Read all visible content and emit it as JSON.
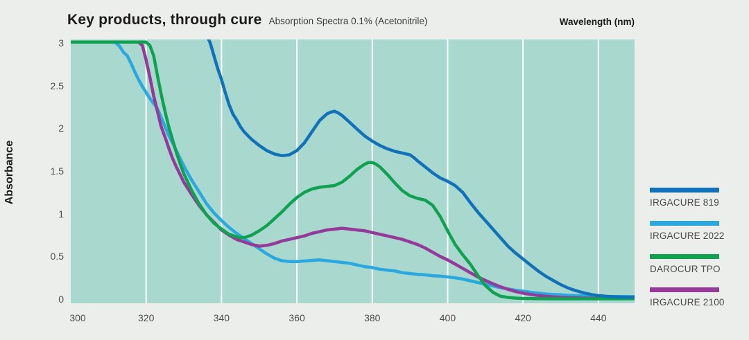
{
  "header": {
    "title": "Key products, through cure",
    "subtitle": "Absorption Spectra 0.1% (Acetonitrile)"
  },
  "colors": {
    "page_background": "#eceeeb",
    "plot_background": "#a9d8cf",
    "gridline": "#ffffff",
    "title_text": "#1a1a1a",
    "tick_text": "#4d4d4d",
    "legend_text": "#4a4a4a"
  },
  "chart_data": {
    "type": "line",
    "title": "Key products, through cure",
    "subtitle": "Absorption Spectra 0.1% (Acetonitrile)",
    "xlabel": "Wavelength (nm)",
    "ylabel": "Absorbance",
    "xlim": [
      300,
      449.6
    ],
    "ylim": [
      0,
      3
    ],
    "x_ticks": [
      300,
      320,
      340,
      360,
      380,
      400,
      420,
      440
    ],
    "y_ticks": [
      0,
      0.5,
      1,
      1.5,
      2,
      2.5,
      3
    ],
    "grid": "vertical-only",
    "legend_position": "right",
    "line_width": 4.5,
    "draw_order": [
      "IRGACURE 2022",
      "IRGACURE 2100",
      "DAROCUR TPO",
      "IRGACURE 819"
    ],
    "series": [
      {
        "name": "IRGACURE 819",
        "color": "#1272b9",
        "points": [
          [
            334,
            3.3
          ],
          [
            336,
            3.1
          ],
          [
            337,
            3.0
          ],
          [
            338,
            2.85
          ],
          [
            339,
            2.7
          ],
          [
            340,
            2.57
          ],
          [
            341,
            2.42
          ],
          [
            342,
            2.28
          ],
          [
            343,
            2.17
          ],
          [
            344,
            2.1
          ],
          [
            345,
            2.02
          ],
          [
            346,
            1.96
          ],
          [
            348,
            1.87
          ],
          [
            350,
            1.8
          ],
          [
            352,
            1.74
          ],
          [
            354,
            1.7
          ],
          [
            356,
            1.68
          ],
          [
            358,
            1.69
          ],
          [
            360,
            1.74
          ],
          [
            362,
            1.83
          ],
          [
            364,
            1.96
          ],
          [
            366,
            2.09
          ],
          [
            368,
            2.17
          ],
          [
            369,
            2.19
          ],
          [
            370,
            2.2
          ],
          [
            371,
            2.18
          ],
          [
            372,
            2.15
          ],
          [
            374,
            2.07
          ],
          [
            376,
            1.99
          ],
          [
            378,
            1.91
          ],
          [
            380,
            1.85
          ],
          [
            382,
            1.8
          ],
          [
            384,
            1.76
          ],
          [
            386,
            1.73
          ],
          [
            388,
            1.71
          ],
          [
            390,
            1.69
          ],
          [
            391,
            1.66
          ],
          [
            392,
            1.62
          ],
          [
            394,
            1.55
          ],
          [
            396,
            1.48
          ],
          [
            398,
            1.42
          ],
          [
            400,
            1.38
          ],
          [
            402,
            1.33
          ],
          [
            404,
            1.25
          ],
          [
            406,
            1.13
          ],
          [
            408,
            1.02
          ],
          [
            410,
            0.92
          ],
          [
            412,
            0.82
          ],
          [
            414,
            0.72
          ],
          [
            416,
            0.62
          ],
          [
            418,
            0.54
          ],
          [
            420,
            0.47
          ],
          [
            422,
            0.4
          ],
          [
            424,
            0.33
          ],
          [
            426,
            0.27
          ],
          [
            428,
            0.22
          ],
          [
            430,
            0.17
          ],
          [
            432,
            0.13
          ],
          [
            434,
            0.1
          ],
          [
            436,
            0.075
          ],
          [
            438,
            0.055
          ],
          [
            440,
            0.042
          ],
          [
            442,
            0.033
          ],
          [
            444,
            0.028
          ],
          [
            446,
            0.025
          ],
          [
            448,
            0.023
          ],
          [
            450,
            0.022
          ]
        ]
      },
      {
        "name": "IRGACURE 2022",
        "color": "#2aa9e0",
        "points": [
          [
            300,
            3.01
          ],
          [
            311,
            3.01
          ],
          [
            312,
            3.0
          ],
          [
            313,
            2.96
          ],
          [
            314,
            2.89
          ],
          [
            315,
            2.85
          ],
          [
            316,
            2.76
          ],
          [
            317,
            2.66
          ],
          [
            318,
            2.57
          ],
          [
            319,
            2.49
          ],
          [
            320,
            2.42
          ],
          [
            321,
            2.35
          ],
          [
            322,
            2.29
          ],
          [
            323,
            2.23
          ],
          [
            324,
            2.13
          ],
          [
            325,
            2.02
          ],
          [
            326,
            1.92
          ],
          [
            327,
            1.83
          ],
          [
            328,
            1.74
          ],
          [
            329,
            1.65
          ],
          [
            330,
            1.56
          ],
          [
            332,
            1.4
          ],
          [
            334,
            1.26
          ],
          [
            336,
            1.12
          ],
          [
            338,
            1.01
          ],
          [
            340,
            0.92
          ],
          [
            342,
            0.84
          ],
          [
            344,
            0.77
          ],
          [
            346,
            0.71
          ],
          [
            348,
            0.65
          ],
          [
            350,
            0.59
          ],
          [
            352,
            0.53
          ],
          [
            354,
            0.48
          ],
          [
            356,
            0.45
          ],
          [
            358,
            0.44
          ],
          [
            360,
            0.44
          ],
          [
            363,
            0.45
          ],
          [
            366,
            0.46
          ],
          [
            368,
            0.45
          ],
          [
            370,
            0.44
          ],
          [
            372,
            0.43
          ],
          [
            374,
            0.42
          ],
          [
            376,
            0.4
          ],
          [
            378,
            0.38
          ],
          [
            380,
            0.37
          ],
          [
            382,
            0.35
          ],
          [
            384,
            0.34
          ],
          [
            386,
            0.33
          ],
          [
            388,
            0.31
          ],
          [
            390,
            0.3
          ],
          [
            392,
            0.29
          ],
          [
            394,
            0.285
          ],
          [
            396,
            0.275
          ],
          [
            398,
            0.27
          ],
          [
            400,
            0.26
          ],
          [
            402,
            0.25
          ],
          [
            404,
            0.235
          ],
          [
            406,
            0.215
          ],
          [
            408,
            0.195
          ],
          [
            410,
            0.175
          ],
          [
            412,
            0.155
          ],
          [
            414,
            0.135
          ],
          [
            416,
            0.12
          ],
          [
            418,
            0.105
          ],
          [
            420,
            0.095
          ],
          [
            422,
            0.08
          ],
          [
            424,
            0.07
          ],
          [
            426,
            0.06
          ],
          [
            428,
            0.055
          ],
          [
            430,
            0.05
          ],
          [
            432,
            0.045
          ],
          [
            434,
            0.04
          ],
          [
            436,
            0.037
          ],
          [
            438,
            0.034
          ],
          [
            440,
            0.032
          ],
          [
            444,
            0.03
          ],
          [
            450,
            0.03
          ]
        ]
      },
      {
        "name": "DAROCUR TPO",
        "color": "#10a250",
        "points": [
          [
            300,
            3.01
          ],
          [
            320,
            3.01
          ],
          [
            321,
            2.97
          ],
          [
            322,
            2.85
          ],
          [
            323,
            2.62
          ],
          [
            324,
            2.4
          ],
          [
            325,
            2.2
          ],
          [
            326,
            2.02
          ],
          [
            327,
            1.87
          ],
          [
            328,
            1.72
          ],
          [
            329,
            1.59
          ],
          [
            330,
            1.47
          ],
          [
            332,
            1.28
          ],
          [
            334,
            1.12
          ],
          [
            336,
            0.99
          ],
          [
            338,
            0.89
          ],
          [
            340,
            0.82
          ],
          [
            342,
            0.76
          ],
          [
            344,
            0.73
          ],
          [
            345,
            0.72
          ],
          [
            346,
            0.72
          ],
          [
            348,
            0.75
          ],
          [
            350,
            0.8
          ],
          [
            352,
            0.86
          ],
          [
            354,
            0.94
          ],
          [
            356,
            1.02
          ],
          [
            358,
            1.11
          ],
          [
            360,
            1.19
          ],
          [
            362,
            1.25
          ],
          [
            364,
            1.29
          ],
          [
            366,
            1.31
          ],
          [
            368,
            1.32
          ],
          [
            370,
            1.33
          ],
          [
            372,
            1.37
          ],
          [
            374,
            1.44
          ],
          [
            376,
            1.52
          ],
          [
            378,
            1.58
          ],
          [
            379,
            1.6
          ],
          [
            380,
            1.6
          ],
          [
            381,
            1.58
          ],
          [
            382,
            1.55
          ],
          [
            384,
            1.46
          ],
          [
            386,
            1.36
          ],
          [
            388,
            1.27
          ],
          [
            390,
            1.21
          ],
          [
            392,
            1.18
          ],
          [
            394,
            1.16
          ],
          [
            396,
            1.1
          ],
          [
            398,
            0.97
          ],
          [
            400,
            0.8
          ],
          [
            402,
            0.64
          ],
          [
            404,
            0.52
          ],
          [
            406,
            0.41
          ],
          [
            408,
            0.28
          ],
          [
            410,
            0.16
          ],
          [
            412,
            0.08
          ],
          [
            414,
            0.035
          ],
          [
            416,
            0.02
          ],
          [
            418,
            0.012
          ],
          [
            420,
            0.008
          ],
          [
            425,
            0.005
          ],
          [
            430,
            0.004
          ],
          [
            440,
            0.004
          ],
          [
            450,
            0.004
          ]
        ]
      },
      {
        "name": "IRGACURE 2100",
        "color": "#953a9b",
        "points": [
          [
            300,
            3.01
          ],
          [
            318,
            3.01
          ],
          [
            319,
            2.97
          ],
          [
            320,
            2.8
          ],
          [
            321,
            2.6
          ],
          [
            322,
            2.38
          ],
          [
            323,
            2.2
          ],
          [
            324,
            2.02
          ],
          [
            325,
            1.9
          ],
          [
            326,
            1.77
          ],
          [
            327,
            1.65
          ],
          [
            328,
            1.55
          ],
          [
            330,
            1.37
          ],
          [
            332,
            1.23
          ],
          [
            334,
            1.1
          ],
          [
            336,
            0.99
          ],
          [
            338,
            0.9
          ],
          [
            340,
            0.81
          ],
          [
            342,
            0.75
          ],
          [
            344,
            0.7
          ],
          [
            346,
            0.67
          ],
          [
            348,
            0.64
          ],
          [
            350,
            0.62
          ],
          [
            352,
            0.63
          ],
          [
            354,
            0.65
          ],
          [
            356,
            0.68
          ],
          [
            358,
            0.7
          ],
          [
            360,
            0.72
          ],
          [
            362,
            0.74
          ],
          [
            364,
            0.77
          ],
          [
            366,
            0.79
          ],
          [
            368,
            0.81
          ],
          [
            370,
            0.82
          ],
          [
            372,
            0.83
          ],
          [
            374,
            0.82
          ],
          [
            376,
            0.81
          ],
          [
            378,
            0.8
          ],
          [
            380,
            0.78
          ],
          [
            382,
            0.76
          ],
          [
            384,
            0.74
          ],
          [
            386,
            0.72
          ],
          [
            388,
            0.7
          ],
          [
            390,
            0.67
          ],
          [
            392,
            0.64
          ],
          [
            394,
            0.6
          ],
          [
            396,
            0.55
          ],
          [
            398,
            0.5
          ],
          [
            400,
            0.46
          ],
          [
            402,
            0.41
          ],
          [
            404,
            0.36
          ],
          [
            406,
            0.31
          ],
          [
            408,
            0.26
          ],
          [
            410,
            0.22
          ],
          [
            412,
            0.18
          ],
          [
            414,
            0.145
          ],
          [
            416,
            0.115
          ],
          [
            418,
            0.09
          ],
          [
            420,
            0.07
          ],
          [
            422,
            0.055
          ],
          [
            424,
            0.042
          ],
          [
            426,
            0.033
          ],
          [
            428,
            0.026
          ],
          [
            430,
            0.021
          ],
          [
            432,
            0.017
          ],
          [
            434,
            0.014
          ],
          [
            436,
            0.012
          ],
          [
            438,
            0.011
          ],
          [
            440,
            0.01
          ],
          [
            445,
            0.009
          ],
          [
            450,
            0.008
          ]
        ]
      }
    ]
  }
}
